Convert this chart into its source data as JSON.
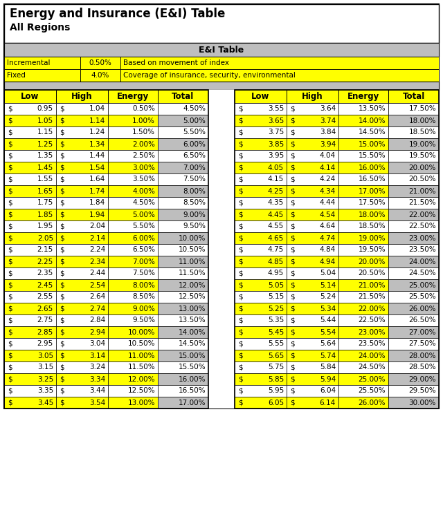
{
  "title_line1": "Energy and Insurance (E&I) Table",
  "title_line2": "All Regions",
  "ei_table_header": "E&I Table",
  "info_rows": [
    {
      "label": "Incremental",
      "value": "0.50%",
      "desc": "Based on movement of index"
    },
    {
      "label": "Fixed",
      "value": "4.0%",
      "desc": "Coverage of insurance, security, environmental"
    }
  ],
  "col_headers": [
    "Low",
    "High",
    "Energy",
    "Total"
  ],
  "left_table": [
    [
      "0.95",
      "1.04",
      "0.50%",
      "4.50%"
    ],
    [
      "1.05",
      "1.14",
      "1.00%",
      "5.00%"
    ],
    [
      "1.15",
      "1.24",
      "1.50%",
      "5.50%"
    ],
    [
      "1.25",
      "1.34",
      "2.00%",
      "6.00%"
    ],
    [
      "1.35",
      "1.44",
      "2.50%",
      "6.50%"
    ],
    [
      "1.45",
      "1.54",
      "3.00%",
      "7.00%"
    ],
    [
      "1.55",
      "1.64",
      "3.50%",
      "7.50%"
    ],
    [
      "1.65",
      "1.74",
      "4.00%",
      "8.00%"
    ],
    [
      "1.75",
      "1.84",
      "4.50%",
      "8.50%"
    ],
    [
      "1.85",
      "1.94",
      "5.00%",
      "9.00%"
    ],
    [
      "1.95",
      "2.04",
      "5.50%",
      "9.50%"
    ],
    [
      "2.05",
      "2.14",
      "6.00%",
      "10.00%"
    ],
    [
      "2.15",
      "2.24",
      "6.50%",
      "10.50%"
    ],
    [
      "2.25",
      "2.34",
      "7.00%",
      "11.00%"
    ],
    [
      "2.35",
      "2.44",
      "7.50%",
      "11.50%"
    ],
    [
      "2.45",
      "2.54",
      "8.00%",
      "12.00%"
    ],
    [
      "2.55",
      "2.64",
      "8.50%",
      "12.50%"
    ],
    [
      "2.65",
      "2.74",
      "9.00%",
      "13.00%"
    ],
    [
      "2.75",
      "2.84",
      "9.50%",
      "13.50%"
    ],
    [
      "2.85",
      "2.94",
      "10.00%",
      "14.00%"
    ],
    [
      "2.95",
      "3.04",
      "10.50%",
      "14.50%"
    ],
    [
      "3.05",
      "3.14",
      "11.00%",
      "15.00%"
    ],
    [
      "3.15",
      "3.24",
      "11.50%",
      "15.50%"
    ],
    [
      "3.25",
      "3.34",
      "12.00%",
      "16.00%"
    ],
    [
      "3.35",
      "3.44",
      "12.50%",
      "16.50%"
    ],
    [
      "3.45",
      "3.54",
      "13.00%",
      "17.00%"
    ]
  ],
  "right_table": [
    [
      "3.55",
      "3.64",
      "13.50%",
      "17.50%"
    ],
    [
      "3.65",
      "3.74",
      "14.00%",
      "18.00%"
    ],
    [
      "3.75",
      "3.84",
      "14.50%",
      "18.50%"
    ],
    [
      "3.85",
      "3.94",
      "15.00%",
      "19.00%"
    ],
    [
      "3.95",
      "4.04",
      "15.50%",
      "19.50%"
    ],
    [
      "4.05",
      "4.14",
      "16.00%",
      "20.00%"
    ],
    [
      "4.15",
      "4.24",
      "16.50%",
      "20.50%"
    ],
    [
      "4.25",
      "4.34",
      "17.00%",
      "21.00%"
    ],
    [
      "4.35",
      "4.44",
      "17.50%",
      "21.50%"
    ],
    [
      "4.45",
      "4.54",
      "18.00%",
      "22.00%"
    ],
    [
      "4.55",
      "4.64",
      "18.50%",
      "22.50%"
    ],
    [
      "4.65",
      "4.74",
      "19.00%",
      "23.00%"
    ],
    [
      "4.75",
      "4.84",
      "19.50%",
      "23.50%"
    ],
    [
      "4.85",
      "4.94",
      "20.00%",
      "24.00%"
    ],
    [
      "4.95",
      "5.04",
      "20.50%",
      "24.50%"
    ],
    [
      "5.05",
      "5.14",
      "21.00%",
      "25.00%"
    ],
    [
      "5.15",
      "5.24",
      "21.50%",
      "25.50%"
    ],
    [
      "5.25",
      "5.34",
      "22.00%",
      "26.00%"
    ],
    [
      "5.35",
      "5.44",
      "22.50%",
      "26.50%"
    ],
    [
      "5.45",
      "5.54",
      "23.00%",
      "27.00%"
    ],
    [
      "5.55",
      "5.64",
      "23.50%",
      "27.50%"
    ],
    [
      "5.65",
      "5.74",
      "24.00%",
      "28.00%"
    ],
    [
      "5.75",
      "5.84",
      "24.50%",
      "28.50%"
    ],
    [
      "5.85",
      "5.94",
      "25.00%",
      "29.00%"
    ],
    [
      "5.95",
      "6.04",
      "25.50%",
      "29.50%"
    ],
    [
      "6.05",
      "6.14",
      "26.00%",
      "30.00%"
    ]
  ],
  "yellow": "#FFFF00",
  "gray_header": "#BEBEBE",
  "gray_cell": "#BEBEBE",
  "white": "#FFFFFF",
  "black": "#000000",
  "outer_border_color": "#4F4F4F",
  "title_bg": "#FFFFFF",
  "sep_bg": "#BEBEBE"
}
